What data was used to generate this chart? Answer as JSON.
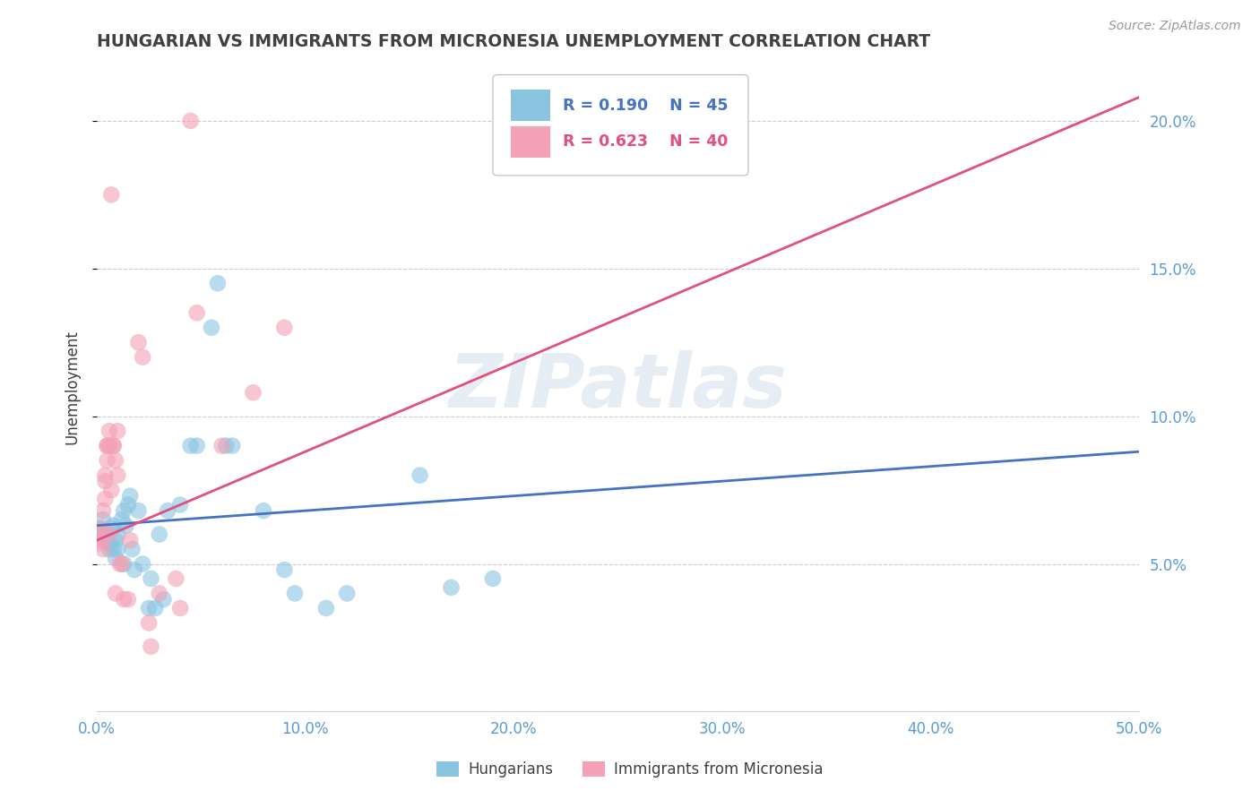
{
  "title": "HUNGARIAN VS IMMIGRANTS FROM MICRONESIA UNEMPLOYMENT CORRELATION CHART",
  "source": "Source: ZipAtlas.com",
  "ylabel": "Unemployment",
  "watermark": "ZIPatlas",
  "xmin": 0.0,
  "xmax": 0.5,
  "ymin": 0.0,
  "ymax": 0.22,
  "yticks": [
    0.05,
    0.1,
    0.15,
    0.2
  ],
  "ytick_labels": [
    "5.0%",
    "10.0%",
    "15.0%",
    "20.0%"
  ],
  "xticks": [
    0.0,
    0.1,
    0.2,
    0.3,
    0.4,
    0.5
  ],
  "xtick_labels": [
    "0.0%",
    "10.0%",
    "20.0%",
    "30.0%",
    "40.0%",
    "50.0%"
  ],
  "legend_blue_R": "R = 0.190",
  "legend_blue_N": "N = 45",
  "legend_pink_R": "R = 0.623",
  "legend_pink_N": "N = 40",
  "blue_label": "Hungarians",
  "pink_label": "Immigrants from Micronesia",
  "blue_color": "#89c4e1",
  "pink_color": "#f4a0b5",
  "blue_line_color": "#4472c4",
  "pink_line_color": "#e05080",
  "title_color": "#404040",
  "axis_color": "#5b9bd5",
  "legend_text_blue": "#4472c4",
  "legend_text_pink": "#e05080",
  "blue_scatter": [
    [
      0.001,
      0.062
    ],
    [
      0.002,
      0.06
    ],
    [
      0.003,
      0.065
    ],
    [
      0.004,
      0.058
    ],
    [
      0.005,
      0.06
    ],
    [
      0.006,
      0.057
    ],
    [
      0.006,
      0.055
    ],
    [
      0.007,
      0.062
    ],
    [
      0.008,
      0.055
    ],
    [
      0.008,
      0.063
    ],
    [
      0.009,
      0.058
    ],
    [
      0.009,
      0.052
    ],
    [
      0.01,
      0.055
    ],
    [
      0.01,
      0.06
    ],
    [
      0.012,
      0.065
    ],
    [
      0.013,
      0.068
    ],
    [
      0.013,
      0.05
    ],
    [
      0.014,
      0.063
    ],
    [
      0.015,
      0.07
    ],
    [
      0.016,
      0.073
    ],
    [
      0.017,
      0.055
    ],
    [
      0.018,
      0.048
    ],
    [
      0.02,
      0.068
    ],
    [
      0.022,
      0.05
    ],
    [
      0.025,
      0.035
    ],
    [
      0.026,
      0.045
    ],
    [
      0.028,
      0.035
    ],
    [
      0.03,
      0.06
    ],
    [
      0.032,
      0.038
    ],
    [
      0.034,
      0.068
    ],
    [
      0.04,
      0.07
    ],
    [
      0.045,
      0.09
    ],
    [
      0.048,
      0.09
    ],
    [
      0.055,
      0.13
    ],
    [
      0.058,
      0.145
    ],
    [
      0.062,
      0.09
    ],
    [
      0.065,
      0.09
    ],
    [
      0.08,
      0.068
    ],
    [
      0.09,
      0.048
    ],
    [
      0.095,
      0.04
    ],
    [
      0.11,
      0.035
    ],
    [
      0.12,
      0.04
    ],
    [
      0.155,
      0.08
    ],
    [
      0.17,
      0.042
    ],
    [
      0.19,
      0.045
    ]
  ],
  "pink_scatter": [
    [
      0.001,
      0.06
    ],
    [
      0.001,
      0.057
    ],
    [
      0.002,
      0.058
    ],
    [
      0.002,
      0.062
    ],
    [
      0.003,
      0.055
    ],
    [
      0.003,
      0.068
    ],
    [
      0.004,
      0.078
    ],
    [
      0.004,
      0.08
    ],
    [
      0.004,
      0.072
    ],
    [
      0.005,
      0.09
    ],
    [
      0.005,
      0.09
    ],
    [
      0.005,
      0.085
    ],
    [
      0.006,
      0.09
    ],
    [
      0.006,
      0.095
    ],
    [
      0.006,
      0.06
    ],
    [
      0.007,
      0.075
    ],
    [
      0.007,
      0.175
    ],
    [
      0.008,
      0.09
    ],
    [
      0.008,
      0.09
    ],
    [
      0.009,
      0.085
    ],
    [
      0.009,
      0.04
    ],
    [
      0.01,
      0.095
    ],
    [
      0.01,
      0.08
    ],
    [
      0.011,
      0.05
    ],
    [
      0.012,
      0.05
    ],
    [
      0.013,
      0.038
    ],
    [
      0.015,
      0.038
    ],
    [
      0.016,
      0.058
    ],
    [
      0.02,
      0.125
    ],
    [
      0.022,
      0.12
    ],
    [
      0.025,
      0.03
    ],
    [
      0.026,
      0.022
    ],
    [
      0.03,
      0.04
    ],
    [
      0.038,
      0.045
    ],
    [
      0.04,
      0.035
    ],
    [
      0.045,
      0.2
    ],
    [
      0.048,
      0.135
    ],
    [
      0.06,
      0.09
    ],
    [
      0.075,
      0.108
    ],
    [
      0.09,
      0.13
    ]
  ],
  "blue_trendline_x": [
    0.0,
    0.5
  ],
  "blue_trendline_y": [
    0.063,
    0.088
  ],
  "pink_trendline_x": [
    0.0,
    0.5
  ],
  "pink_trendline_y": [
    0.058,
    0.208
  ]
}
